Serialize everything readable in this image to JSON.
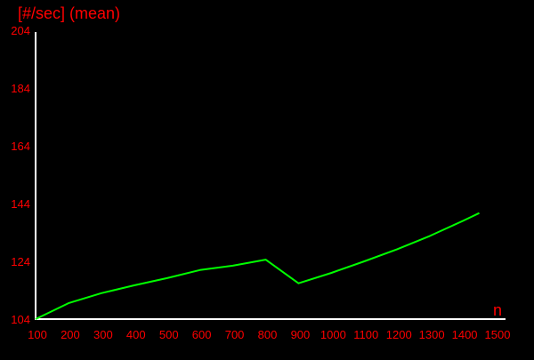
{
  "chart_data": {
    "type": "line",
    "title": "",
    "ylabel": "[#/sec] (mean)",
    "xlabel": "n",
    "xlim": [
      100,
      1500
    ],
    "ylim": [
      104,
      204
    ],
    "x_ticks": [
      100,
      200,
      300,
      400,
      500,
      600,
      700,
      800,
      900,
      1000,
      1100,
      1200,
      1300,
      1400,
      1500
    ],
    "y_ticks": [
      104,
      124,
      144,
      164,
      184,
      204
    ],
    "grid": false,
    "legend": "none",
    "series": [
      {
        "values": [
          {
            "x": 100,
            "y": 104
          },
          {
            "x": 200,
            "y": 109.5
          },
          {
            "x": 300,
            "y": 113
          },
          {
            "x": 400,
            "y": 115.7
          },
          {
            "x": 500,
            "y": 118.2
          },
          {
            "x": 600,
            "y": 121
          },
          {
            "x": 700,
            "y": 122.5
          },
          {
            "x": 800,
            "y": 124.6
          },
          {
            "x": 900,
            "y": 116.4
          },
          {
            "x": 1000,
            "y": 120
          },
          {
            "x": 1100,
            "y": 124
          },
          {
            "x": 1200,
            "y": 128.2
          },
          {
            "x": 1300,
            "y": 132.8
          },
          {
            "x": 1400,
            "y": 138
          },
          {
            "x": 1450,
            "y": 140.7
          }
        ]
      }
    ]
  },
  "colors": {
    "background": "#000000",
    "axis": "#ffffff",
    "text": "#ff0000",
    "line": "#00ff00"
  }
}
